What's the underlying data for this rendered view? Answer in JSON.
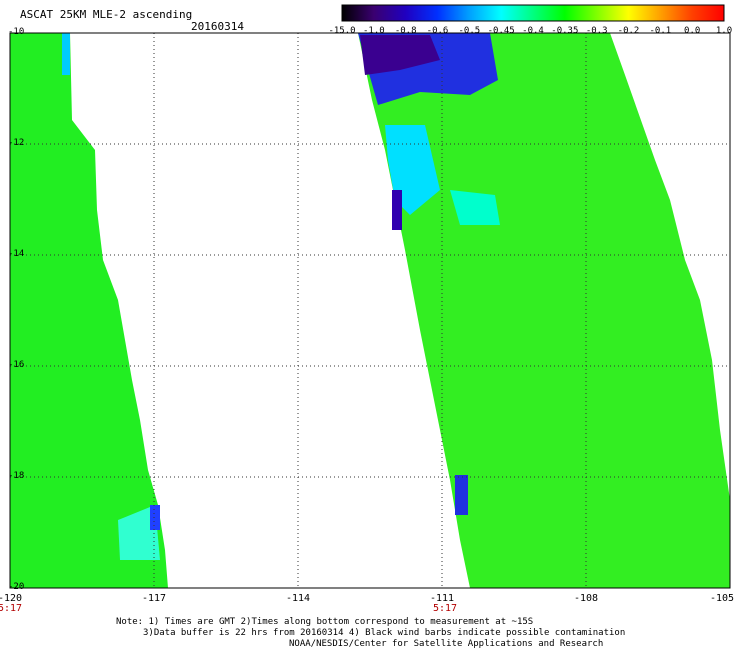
{
  "header": {
    "title": "ASCAT 25KM MLE-2 ascending",
    "date": "20160314"
  },
  "colorbar": {
    "labels": [
      "-15.0",
      "-1.0",
      "-0.8",
      "-0.6",
      "-0.5",
      "-0.45",
      "-0.4",
      "-0.35",
      "-0.3",
      "-0.2",
      "-0.1",
      "0.0",
      "1.0"
    ],
    "colors": [
      "#000000",
      "#3a0070",
      "#2000c0",
      "#0030ff",
      "#00a0ff",
      "#00ffff",
      "#00ff80",
      "#00ff00",
      "#80ff00",
      "#ffff00",
      "#ffa000",
      "#ff4000",
      "#ff0000"
    ]
  },
  "map": {
    "x_labels": [
      "-120",
      "-117",
      "-114",
      "-111",
      "-108",
      "-105"
    ],
    "y_labels": [
      "-10",
      "-12",
      "-14",
      "-16",
      "-18",
      "-20"
    ],
    "time_labels": [
      "5:17",
      "5:17"
    ],
    "lon_range": [
      -120,
      -105
    ],
    "lat_range": [
      -20,
      -10
    ],
    "swath_fill": "#22ee22",
    "gridline_style": "dotted"
  },
  "notes": {
    "line1": "Note: 1) Times are GMT 2)Times along bottom correspond to measurement at ~15S",
    "line2": "3)Data buffer is 22 hrs from 20160314 4) Black wind barbs indicate possible contamination",
    "line3": "NOAA/NESDIS/Center for Satellite Applications and Research"
  }
}
